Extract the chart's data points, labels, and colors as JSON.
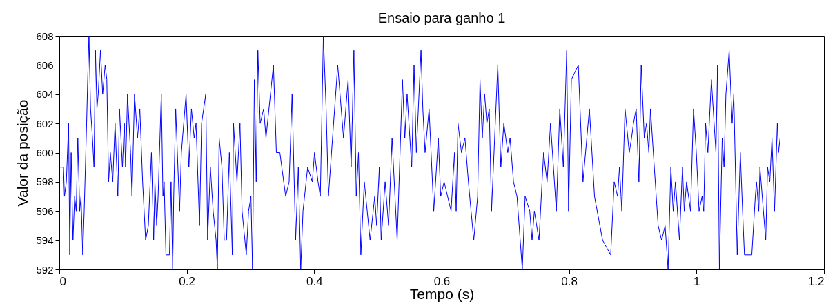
{
  "chart_data": {
    "type": "line",
    "title": "Ensaio para ganho 1",
    "xlabel": "Tempo (s)",
    "ylabel": "Valor da posição",
    "xlim": [
      0,
      1.2
    ],
    "xticks": [
      0,
      0.2,
      0.4,
      0.6,
      0.8,
      1,
      1.2
    ],
    "ylim": [
      592,
      608
    ],
    "yticks": [
      592,
      594,
      596,
      598,
      600,
      602,
      604,
      606,
      608
    ],
    "grid": false,
    "marker": "none",
    "line_style": "solid",
    "x": [
      0,
      0.0065,
      0.008,
      0.011,
      0.0145,
      0.0163,
      0.0185,
      0.0214,
      0.024,
      0.0265,
      0.029,
      0.032,
      0.034,
      0.0367,
      0.039,
      0.0428,
      0.0445,
      0.0465,
      0.049,
      0.052,
      0.0544,
      0.0566,
      0.059,
      0.061,
      0.0646,
      0.068,
      0.0719,
      0.0745,
      0.0773,
      0.08,
      0.0838,
      0.0875,
      0.0918,
      0.0944,
      0.099,
      0.102,
      0.104,
      0.107,
      0.1118,
      0.114,
      0.118,
      0.1227,
      0.1263,
      0.1307,
      0.1354,
      0.1397,
      0.1445,
      0.148,
      0.15,
      0.1528,
      0.155,
      0.16,
      0.1626,
      0.1645,
      0.1673,
      0.1728,
      0.1753,
      0.1779,
      0.1795,
      0.1826,
      0.1887,
      0.1915,
      0.1989,
      0.2033,
      0.2073,
      0.2116,
      0.2145,
      0.22,
      0.2232,
      0.2298,
      0.2327,
      0.237,
      0.2414,
      0.246,
      0.248,
      0.2508,
      0.2552,
      0.2588,
      0.2624,
      0.2668,
      0.2715,
      0.2733,
      0.2788,
      0.2835,
      0.2868,
      0.2934,
      0.297,
      0.3007,
      0.3032,
      0.3061,
      0.309,
      0.3116,
      0.3152,
      0.3207,
      0.3243,
      0.336,
      0.3406,
      0.3461,
      0.3552,
      0.3606,
      0.3653,
      0.3708,
      0.3751,
      0.3788,
      0.3824,
      0.3897,
      0.397,
      0.4005,
      0.406,
      0.4096,
      0.4144,
      0.4187,
      0.4223,
      0.4369,
      0.446,
      0.4532,
      0.458,
      0.4623,
      0.466,
      0.4695,
      0.4732,
      0.4786,
      0.4877,
      0.495,
      0.498,
      0.5022,
      0.5051,
      0.5113,
      0.5167,
      0.5222,
      0.5302,
      0.5385,
      0.5422,
      0.5458,
      0.553,
      0.5567,
      0.5603,
      0.5676,
      0.5705,
      0.574,
      0.5803,
      0.5876,
      0.5948,
      0.5985,
      0.6039,
      0.6148,
      0.6202,
      0.6228,
      0.6257,
      0.6311,
      0.6366,
      0.642,
      0.6504,
      0.6565,
      0.6602,
      0.6638,
      0.6674,
      0.671,
      0.6747,
      0.6783,
      0.6881,
      0.6929,
      0.6976,
      0.7038,
      0.7074,
      0.7128,
      0.7183,
      0.7266,
      0.731,
      0.7383,
      0.7419,
      0.7455,
      0.7528,
      0.76,
      0.7655,
      0.7709,
      0.78,
      0.7854,
      0.791,
      0.7963,
      0.7992,
      0.8036,
      0.8145,
      0.8218,
      0.8319,
      0.8399,
      0.8526,
      0.8653,
      0.8708,
      0.8762,
      0.8791,
      0.8828,
      0.8878,
      0.8944,
      0.898,
      0.901,
      0.9053,
      0.9096,
      0.9132,
      0.918,
      0.9216,
      0.9252,
      0.9278,
      0.9307,
      0.9398,
      0.9452,
      0.9507,
      0.9554,
      0.9597,
      0.9634,
      0.967,
      0.9732,
      0.9779,
      0.9808,
      0.9844,
      0.9906,
      0.9953,
      0.9997,
      1.004,
      1.0087,
      1.0113,
      1.0142,
      1.0178,
      1.0233,
      1.0305,
      1.033,
      1.0359,
      1.0403,
      1.0432,
      1.0461,
      1.0512,
      1.0559,
      1.0585,
      1.0639,
      1.0687,
      1.0723,
      1.0752,
      1.0868,
      1.0923,
      1.0941,
      1.0977,
      1.0995,
      1.1086,
      1.1115,
      1.115,
      1.1184,
      1.1224,
      1.1268,
      1.1286,
      1.1311
    ],
    "values": [
      599,
      599,
      597,
      598,
      602,
      593,
      600,
      594,
      597,
      596,
      601,
      596,
      597,
      593,
      596,
      602,
      605,
      608,
      603,
      601,
      599,
      607,
      603,
      604,
      607,
      604,
      606,
      605,
      598,
      600,
      598,
      602,
      597,
      603,
      599,
      602,
      599,
      604,
      600,
      597,
      604,
      601,
      603,
      598,
      594,
      595,
      600,
      594,
      598,
      595,
      597,
      604,
      597,
      598,
      593,
      593,
      598,
      592,
      597,
      603,
      596,
      600,
      604,
      599,
      603,
      601,
      602,
      595,
      602,
      604,
      594,
      599,
      596,
      594,
      592,
      601,
      599,
      594,
      594,
      600,
      593,
      602,
      598,
      602,
      596,
      593,
      596,
      597,
      592,
      605,
      598,
      607,
      602,
      603,
      601,
      606,
      600,
      600,
      597,
      598,
      604,
      594,
      599,
      592,
      596,
      599,
      598,
      600,
      598,
      597,
      608,
      603,
      597,
      606,
      601,
      605,
      599,
      607,
      597,
      600,
      593,
      598,
      594,
      597,
      595,
      599,
      594,
      598,
      595,
      601,
      594,
      605,
      601,
      604,
      599,
      606,
      600,
      607,
      603,
      600,
      603,
      596,
      601,
      597,
      598,
      596,
      600,
      596,
      602,
      600,
      601,
      598,
      594,
      597,
      605,
      601,
      604,
      602,
      603,
      596,
      606,
      599,
      602,
      600,
      601,
      598,
      597,
      592,
      597,
      596,
      594,
      596,
      594,
      600,
      598,
      602,
      596,
      603,
      599,
      607,
      596,
      605,
      606,
      598,
      603,
      597,
      594,
      593,
      598,
      597,
      599,
      596,
      603,
      600,
      601,
      602,
      603,
      598,
      606,
      601,
      602,
      600,
      603,
      601,
      595,
      594,
      595,
      592,
      599,
      596,
      598,
      594,
      599,
      596,
      598,
      596,
      603,
      600,
      596,
      597,
      596,
      602,
      600,
      605,
      600,
      606,
      592,
      601,
      599,
      604,
      607,
      602,
      604,
      593,
      600,
      596,
      593,
      593,
      597,
      598,
      596,
      599,
      594,
      599,
      598,
      601,
      596,
      602,
      600,
      601
    ],
    "color": "#0000ff"
  }
}
